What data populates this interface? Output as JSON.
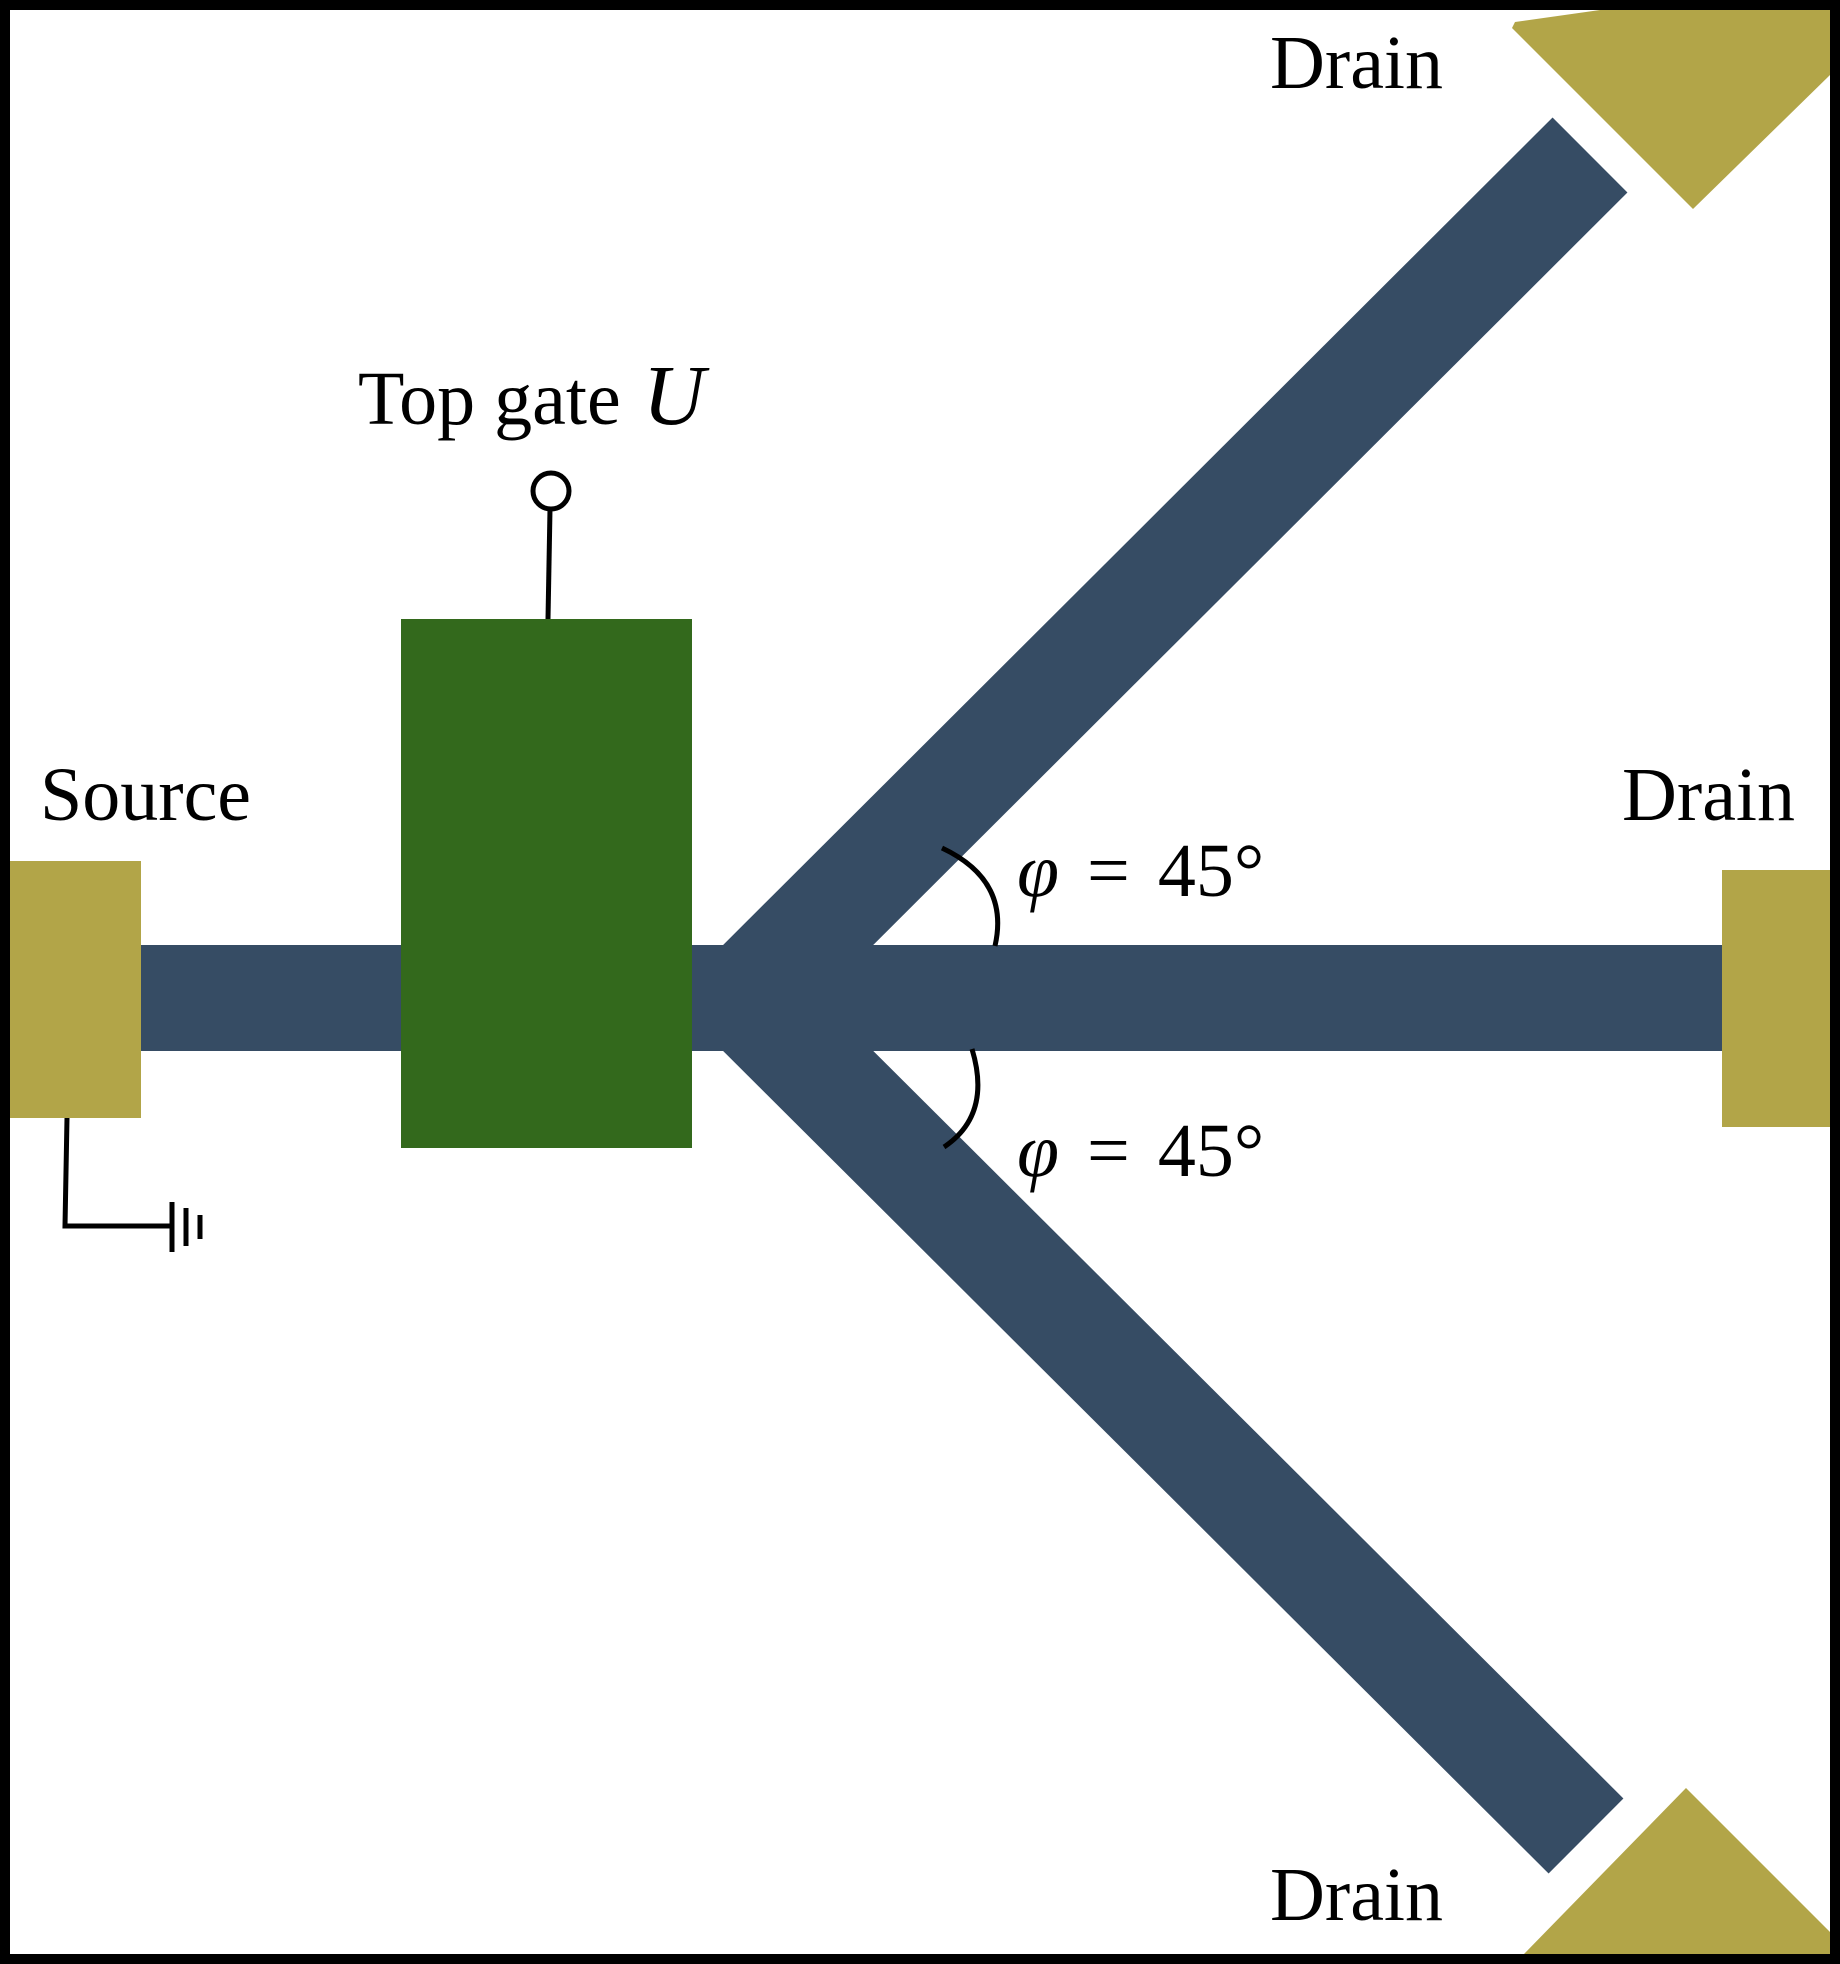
{
  "diagram": {
    "labels": {
      "source": "Source",
      "top_gate_text": "Top gate",
      "top_gate_symbol": "U",
      "drain_top": "Drain",
      "drain_right": "Drain",
      "drain_bottom": "Drain"
    },
    "angles": [
      {
        "symbol": "φ",
        "equals": "=",
        "value": "45°"
      },
      {
        "symbol": "φ",
        "equals": "=",
        "value": "45°"
      }
    ],
    "colors": {
      "channel": "#364c64",
      "gate": "#33691c",
      "contact": "#b2a548",
      "frame": "#000000",
      "background": "#ffffff"
    },
    "icons": [
      "ground-symbol-icon",
      "gate-terminal-icon"
    ]
  }
}
